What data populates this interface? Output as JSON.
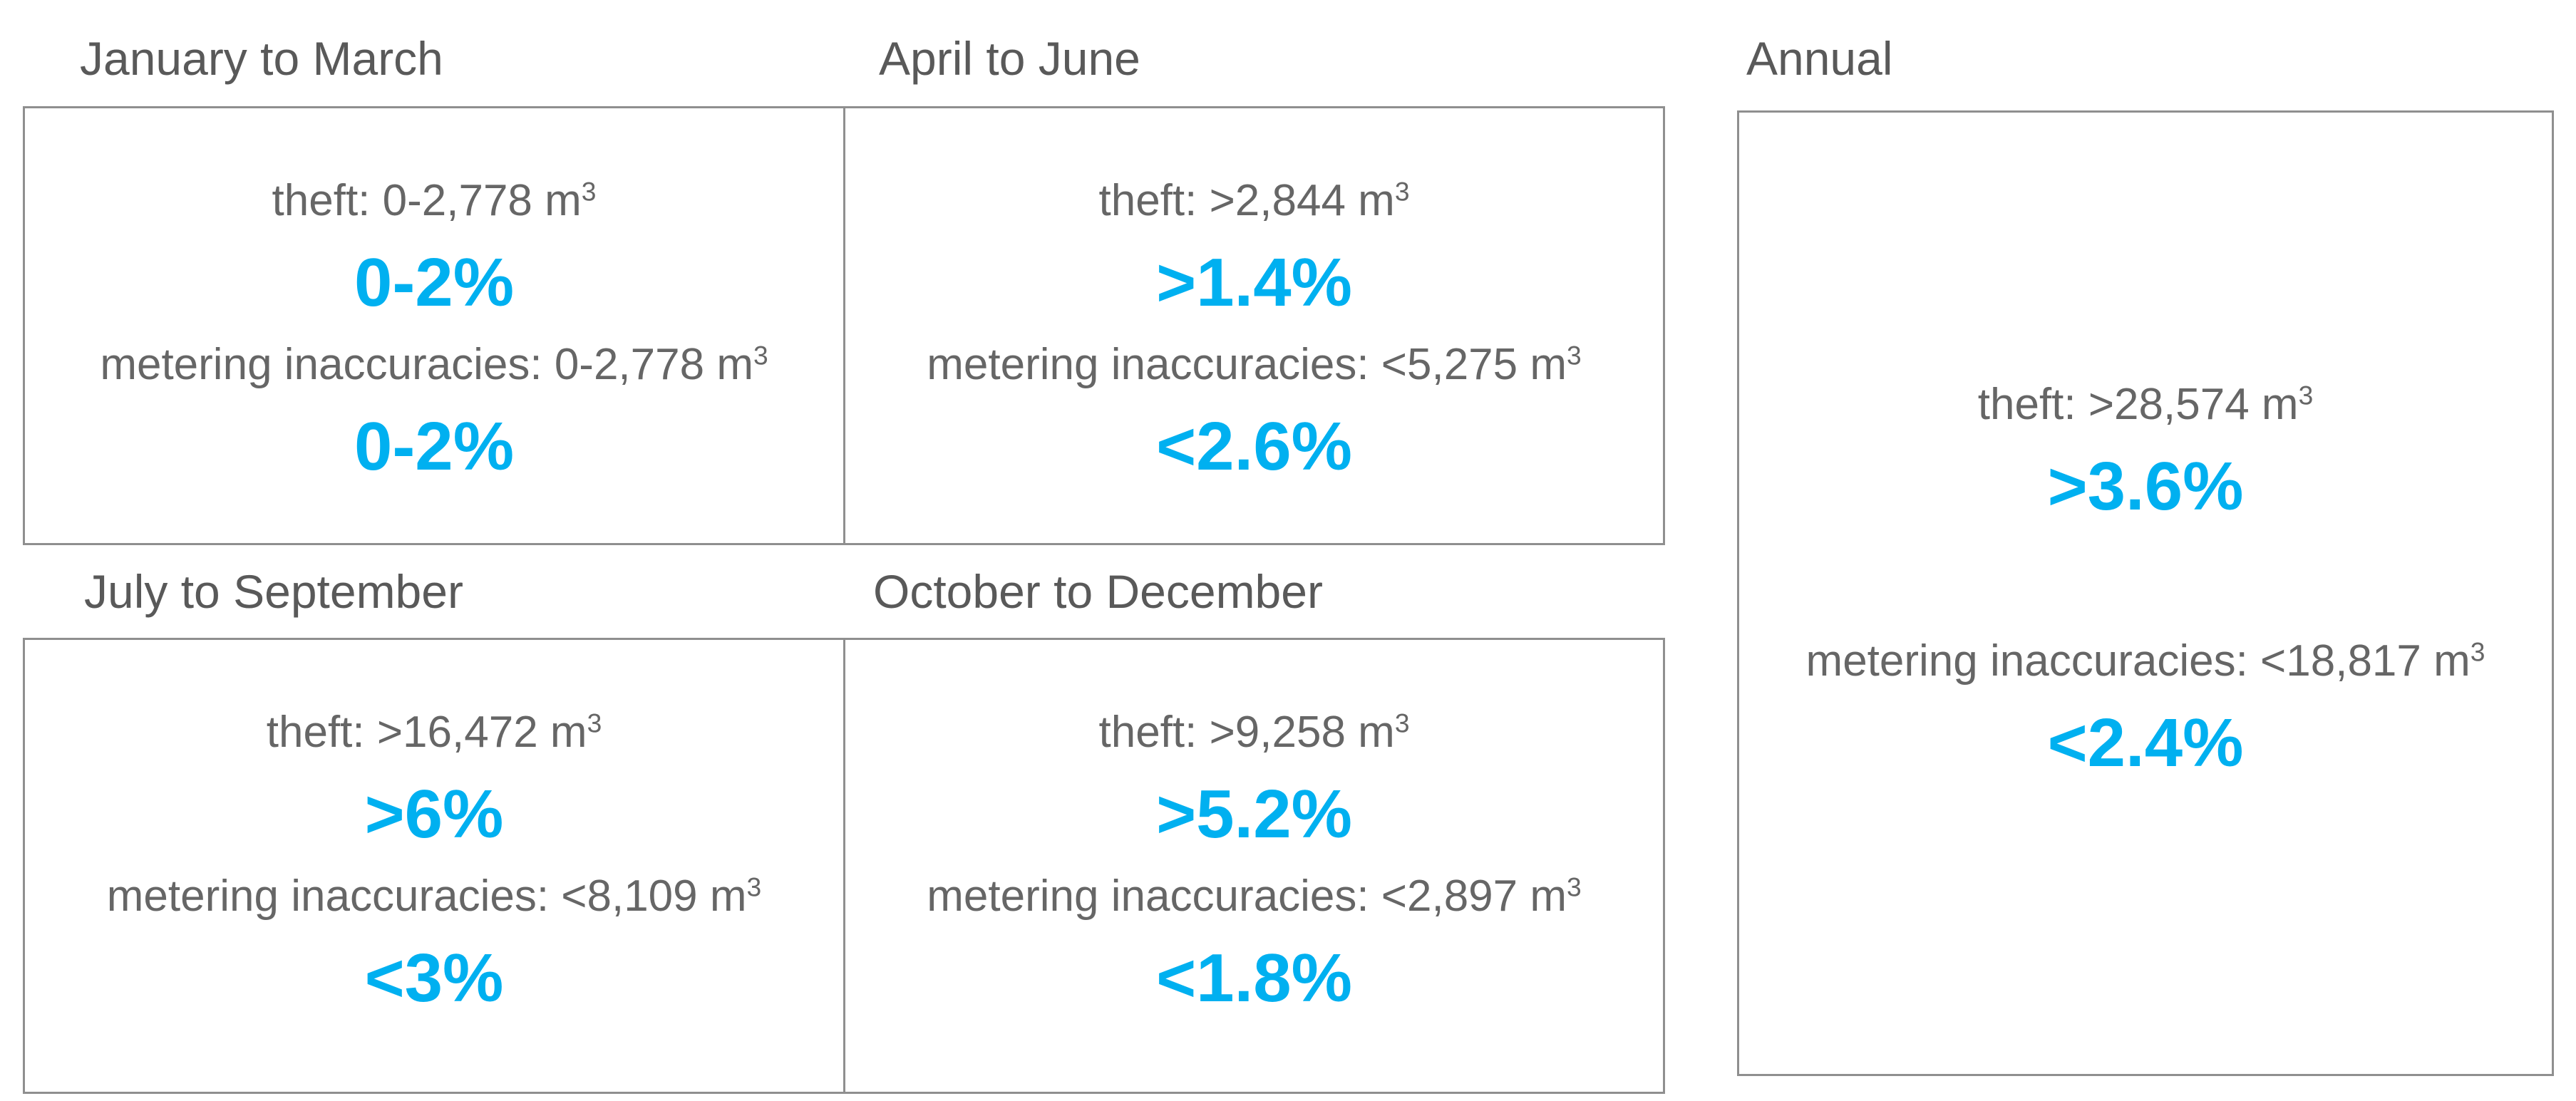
{
  "panels": [
    {
      "title": "January to March",
      "theft": {
        "label": "theft: 0-2,778 m",
        "sup": "3",
        "pct": "0-2%"
      },
      "metering": {
        "label": "metering inaccuracies: 0-2,778 m",
        "sup": "3",
        "pct": "0-2%"
      }
    },
    {
      "title": "April to June",
      "theft": {
        "label": "theft: >2,844 m",
        "sup": "3",
        "pct": ">1.4%"
      },
      "metering": {
        "label": "metering inaccuracies: <5,275 m",
        "sup": "3",
        "pct": "<2.6%"
      }
    },
    {
      "title": "July to September",
      "theft": {
        "label": "theft: >16,472 m",
        "sup": "3",
        "pct": ">6%"
      },
      "metering": {
        "label": "metering inaccuracies: <8,109 m",
        "sup": "3",
        "pct": "<3%"
      }
    },
    {
      "title": "October to December",
      "theft": {
        "label": "theft: >9,258 m",
        "sup": "3",
        "pct": ">5.2%"
      },
      "metering": {
        "label": "metering inaccuracies: <2,897 m",
        "sup": "3",
        "pct": "<1.8%"
      }
    },
    {
      "title": "Annual",
      "theft": {
        "label": "theft: >28,574 m",
        "sup": "3",
        "pct": ">3.6%"
      },
      "metering": {
        "label": "metering inaccuracies: <18,817 m",
        "sup": "3",
        "pct": "<2.4%"
      }
    }
  ],
  "colors": {
    "accent_blue": "#00B0F0",
    "title_gray": "#595959",
    "label_gray": "#666666",
    "border_gray": "#8f8f8f"
  }
}
